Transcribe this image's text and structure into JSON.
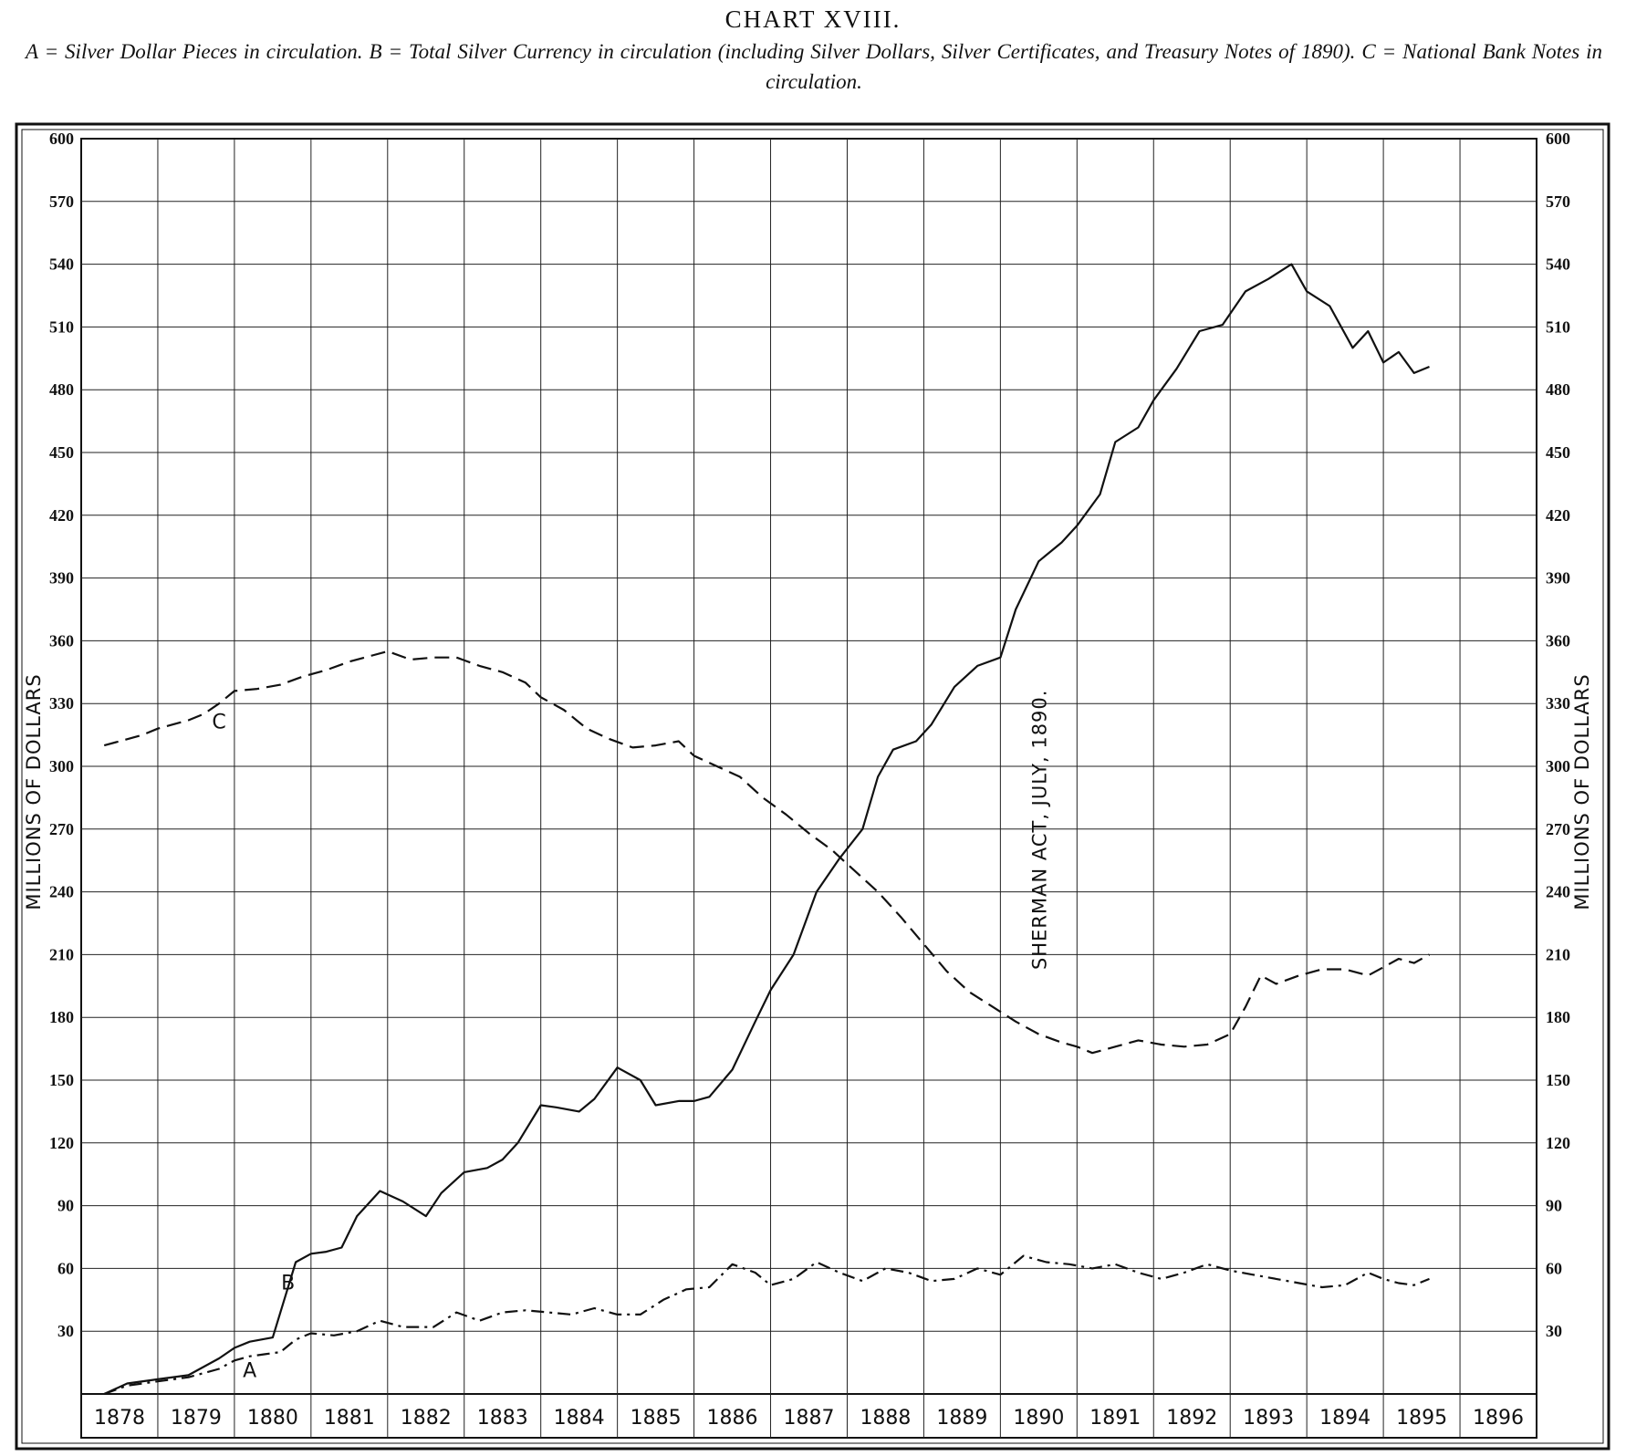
{
  "chart_data": {
    "type": "line",
    "title": "CHART XVIII.",
    "subtitle": "A = Silver Dollar Pieces in circulation.   B = Total Silver Currency in circulation (including Silver Dollars, Silver Certificates, and Treasury Notes of 1890).   C = National Bank Notes in circulation.",
    "ylabel": "MILLIONS OF DOLLARS",
    "ylim": [
      0,
      600
    ],
    "yticks": [
      30,
      60,
      90,
      120,
      150,
      180,
      210,
      240,
      270,
      300,
      330,
      360,
      390,
      420,
      450,
      480,
      510,
      540,
      570,
      600
    ],
    "ytick_labels": [
      "30",
      "60",
      "90",
      "120",
      "150",
      "180",
      "210",
      "240",
      "270",
      "300",
      "330",
      "360",
      "390",
      "420",
      "450",
      "480",
      "510",
      "540",
      "570",
      "600"
    ],
    "xlim": [
      1878,
      1897
    ],
    "xtick_labels": [
      "1878",
      "1879",
      "1880",
      "1881",
      "1882",
      "1883",
      "1884",
      "1885",
      "1886",
      "1887",
      "1888",
      "1889",
      "1890",
      "1891",
      "1892",
      "1893",
      "1894",
      "1895",
      "1896"
    ],
    "grid": true,
    "annotation": {
      "text": "SHERMAN ACT, JULY, 1890.",
      "x": 1890.5
    },
    "series": [
      {
        "name": "A",
        "style": "dash-dot",
        "label_at": [
          1880.2,
          8
        ],
        "x": [
          1878.3,
          1878.6,
          1879.0,
          1879.4,
          1879.8,
          1880.0,
          1880.2,
          1880.4,
          1880.6,
          1880.8,
          1881.0,
          1881.3,
          1881.6,
          1881.9,
          1882.2,
          1882.6,
          1882.9,
          1883.2,
          1883.5,
          1883.8,
          1884.1,
          1884.4,
          1884.7,
          1885.0,
          1885.3,
          1885.6,
          1885.9,
          1886.2,
          1886.5,
          1886.8,
          1887.0,
          1887.3,
          1887.6,
          1887.9,
          1888.2,
          1888.5,
          1888.8,
          1889.1,
          1889.4,
          1889.7,
          1890.0,
          1890.3,
          1890.6,
          1890.9,
          1891.2,
          1891.5,
          1891.8,
          1892.1,
          1892.4,
          1892.7,
          1893.0,
          1893.3,
          1893.6,
          1893.9,
          1894.2,
          1894.5,
          1894.8,
          1895.0,
          1895.2,
          1895.4,
          1895.6
        ],
        "values": [
          0,
          4,
          6,
          8,
          12,
          16,
          18,
          19,
          20,
          26,
          29,
          28,
          30,
          35,
          32,
          32,
          39,
          35,
          39,
          40,
          39,
          38,
          41,
          38,
          38,
          45,
          50,
          51,
          62,
          58,
          52,
          55,
          63,
          58,
          54,
          60,
          58,
          54,
          55,
          60,
          57,
          66,
          63,
          62,
          60,
          62,
          58,
          55,
          58,
          62,
          59,
          57,
          55,
          53,
          51,
          52,
          58,
          55,
          53,
          52,
          55
        ]
      },
      {
        "name": "B",
        "style": "solid",
        "label_at": [
          1880.7,
          50
        ],
        "x": [
          1878.3,
          1878.6,
          1879.0,
          1879.4,
          1879.8,
          1880.0,
          1880.2,
          1880.5,
          1880.8,
          1881.0,
          1881.2,
          1881.4,
          1881.6,
          1881.9,
          1882.2,
          1882.5,
          1882.7,
          1883.0,
          1883.3,
          1883.5,
          1883.7,
          1884.0,
          1884.2,
          1884.5,
          1884.7,
          1885.0,
          1885.3,
          1885.5,
          1885.8,
          1886.0,
          1886.2,
          1886.5,
          1886.8,
          1887.0,
          1887.3,
          1887.6,
          1887.9,
          1888.2,
          1888.4,
          1888.6,
          1888.9,
          1889.1,
          1889.4,
          1889.7,
          1890.0,
          1890.2,
          1890.5,
          1890.8,
          1891.0,
          1891.3,
          1891.5,
          1891.8,
          1892.0,
          1892.3,
          1892.6,
          1892.9,
          1893.2,
          1893.5,
          1893.8,
          1894.0,
          1894.3,
          1894.6,
          1894.8,
          1895.0,
          1895.2,
          1895.4,
          1895.6
        ],
        "values": [
          0,
          5,
          7,
          9,
          17,
          22,
          25,
          27,
          63,
          67,
          68,
          70,
          85,
          97,
          92,
          85,
          96,
          106,
          108,
          112,
          120,
          138,
          137,
          135,
          141,
          156,
          150,
          138,
          140,
          140,
          142,
          155,
          178,
          193,
          210,
          240,
          256,
          270,
          295,
          308,
          312,
          320,
          338,
          348,
          352,
          375,
          398,
          407,
          415,
          430,
          455,
          462,
          475,
          490,
          508,
          511,
          527,
          533,
          540,
          527,
          520,
          500,
          508,
          493,
          498,
          488,
          491
        ]
      },
      {
        "name": "C",
        "style": "dashed",
        "label_at": [
          1879.8,
          318
        ],
        "x": [
          1878.3,
          1878.5,
          1878.8,
          1879.0,
          1879.2,
          1879.4,
          1879.6,
          1879.8,
          1880.0,
          1880.3,
          1880.6,
          1880.9,
          1881.2,
          1881.5,
          1881.8,
          1882.0,
          1882.3,
          1882.6,
          1882.9,
          1883.2,
          1883.5,
          1883.8,
          1884.0,
          1884.3,
          1884.6,
          1884.9,
          1885.2,
          1885.5,
          1885.8,
          1886.0,
          1886.3,
          1886.6,
          1886.9,
          1887.2,
          1887.5,
          1887.8,
          1888.1,
          1888.4,
          1888.7,
          1889.0,
          1889.3,
          1889.6,
          1889.9,
          1890.2,
          1890.5,
          1890.8,
          1891.0,
          1891.2,
          1891.5,
          1891.8,
          1892.1,
          1892.4,
          1892.7,
          1893.0,
          1893.2,
          1893.4,
          1893.6,
          1893.9,
          1894.2,
          1894.5,
          1894.8,
          1895.0,
          1895.2,
          1895.4,
          1895.6
        ],
        "values": [
          310,
          312,
          315,
          318,
          320,
          322,
          325,
          330,
          336,
          337,
          339,
          343,
          346,
          350,
          353,
          355,
          351,
          352,
          352,
          348,
          345,
          340,
          333,
          327,
          318,
          313,
          309,
          310,
          312,
          305,
          300,
          295,
          285,
          277,
          268,
          260,
          250,
          240,
          228,
          215,
          202,
          192,
          185,
          178,
          172,
          168,
          166,
          163,
          166,
          169,
          167,
          166,
          167,
          172,
          185,
          200,
          196,
          200,
          203,
          203,
          200,
          204,
          208,
          206,
          210
        ]
      }
    ]
  }
}
